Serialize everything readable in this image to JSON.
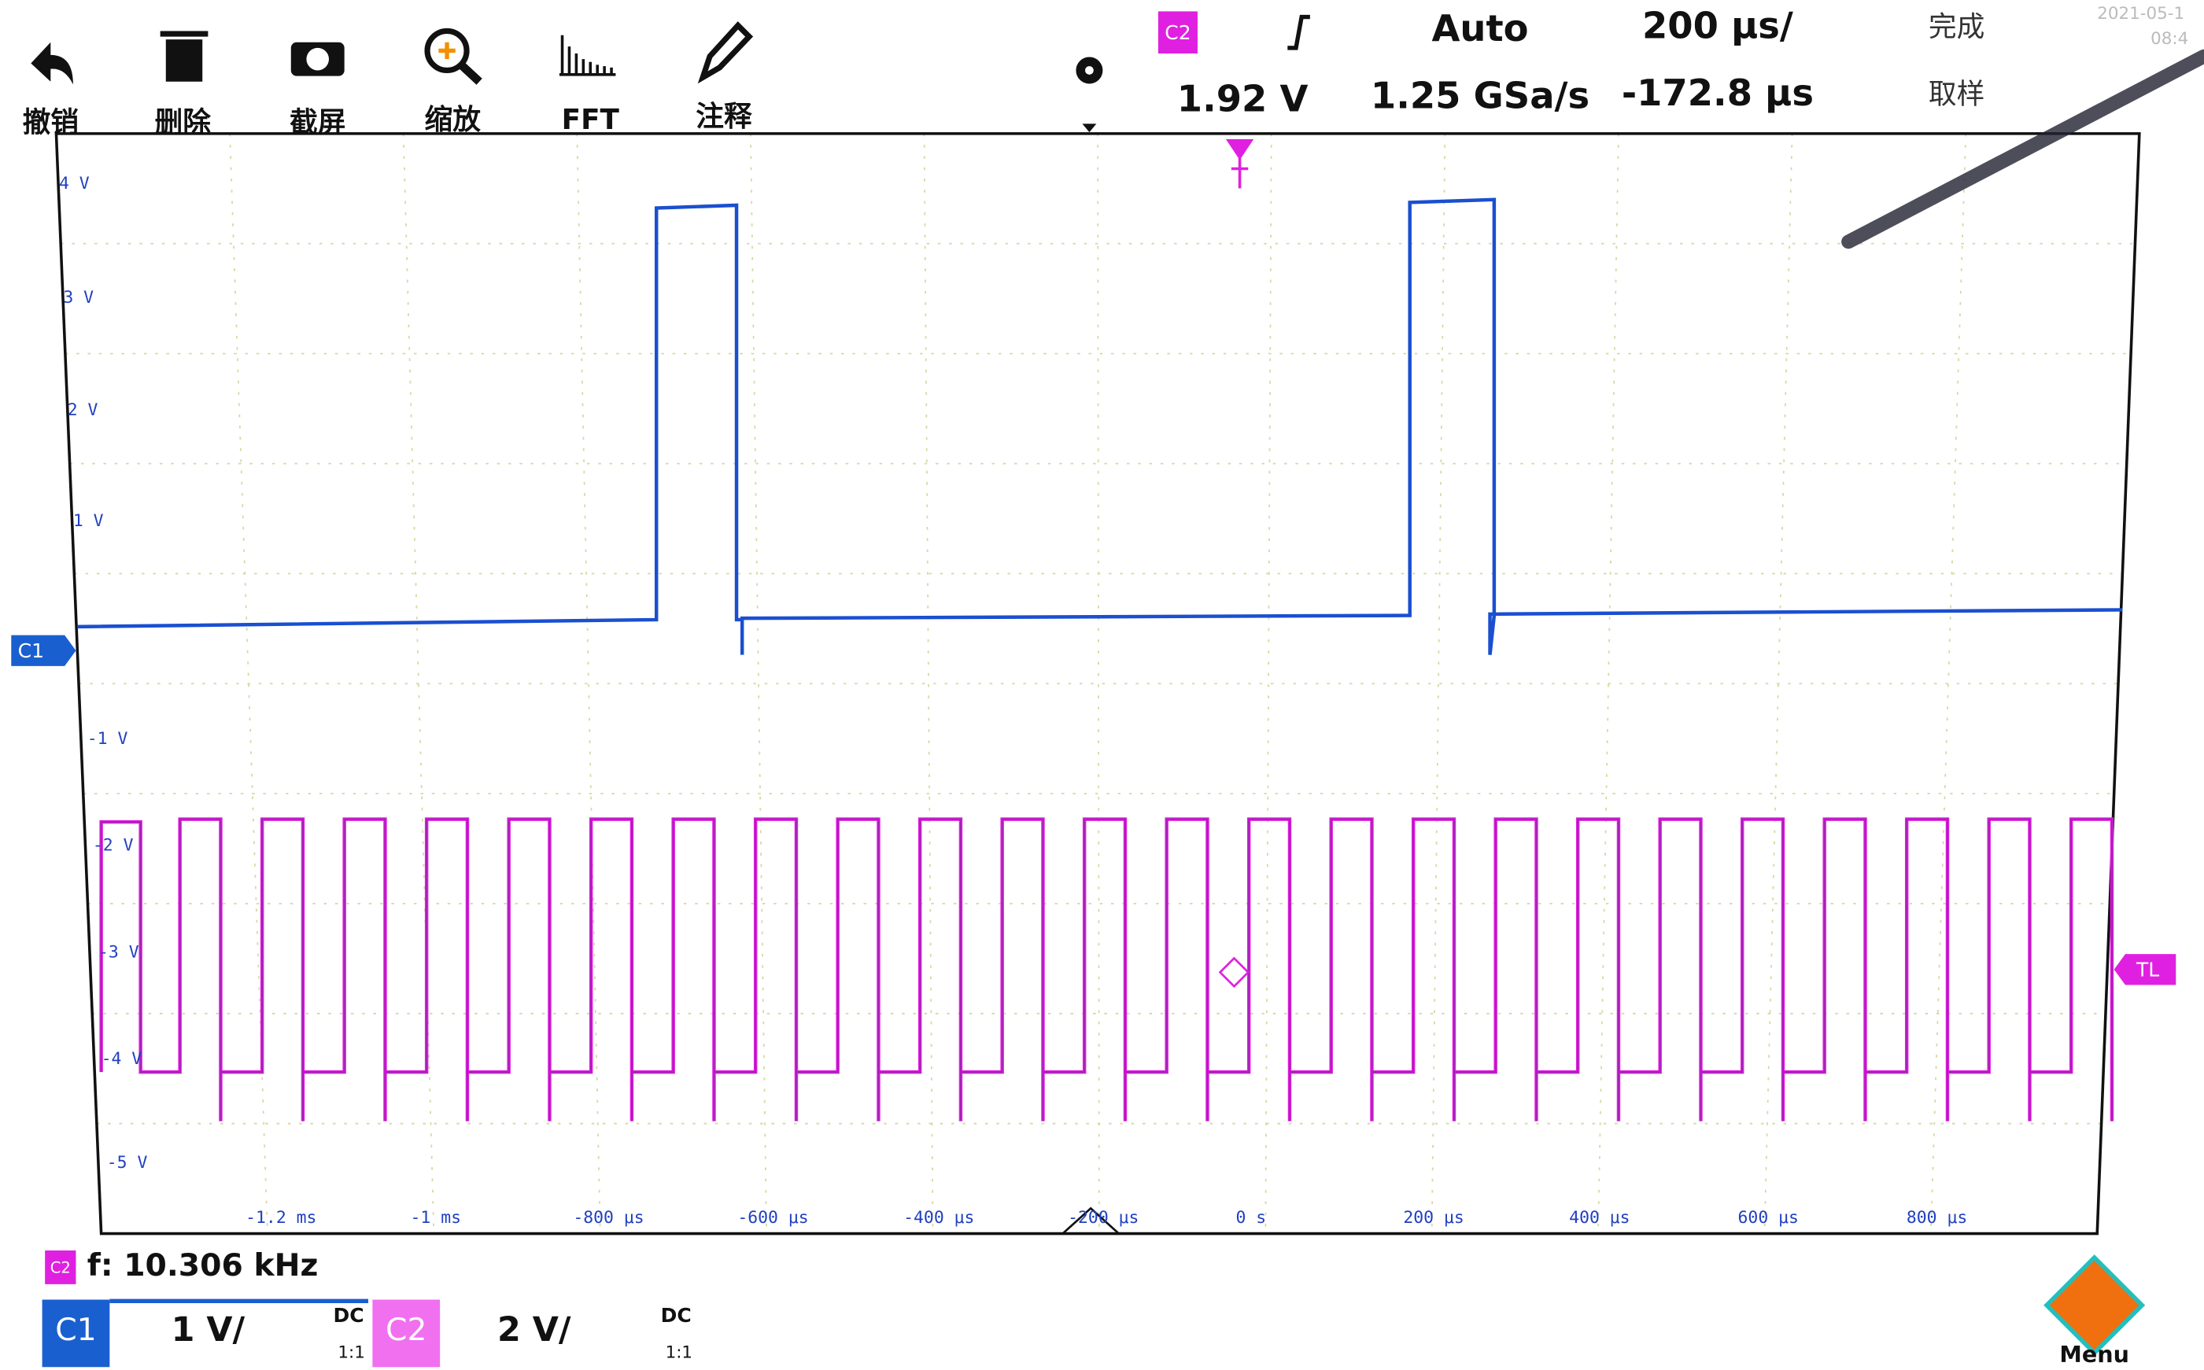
{
  "toolbar": {
    "items": [
      "撤销",
      "删除",
      "截屏",
      "缩放",
      "FFT",
      "注释"
    ]
  },
  "status": {
    "trigger_source": "C2",
    "trigger_mode": "Auto",
    "trigger_level": "1.92 V",
    "timebase": "200 μs/",
    "sample_rate": "1.25 GSa/s",
    "delay": "-172.8 μs",
    "state": "完成",
    "acquire": "取样",
    "date": "2021-05-1",
    "time": "08:4"
  },
  "grid": {
    "y_labels": [
      "4 V",
      "3 V",
      "2 V",
      "1 V",
      "-1 V",
      "-2 V",
      "-3 V",
      "-4 V",
      "-5 V"
    ],
    "x_labels": [
      "-1.2 ms",
      "-1 ms",
      "-800 μs",
      "-600 μs",
      "-400 μs",
      "-200 μs",
      "0 s",
      "200 μs",
      "400 μs",
      "600 μs",
      "800 μs"
    ],
    "ch1_marker": "C1",
    "trigger_marker": "TL"
  },
  "measurement": {
    "source": "C2",
    "text": "f: 10.306 kHz"
  },
  "channels": [
    {
      "name": "C1",
      "scale": "1 V/",
      "coupling": "DC",
      "probe": "1:1"
    },
    {
      "name": "C2",
      "scale": "2 V/",
      "coupling": "DC",
      "probe": "1:1"
    }
  ],
  "menu": "Menu"
}
